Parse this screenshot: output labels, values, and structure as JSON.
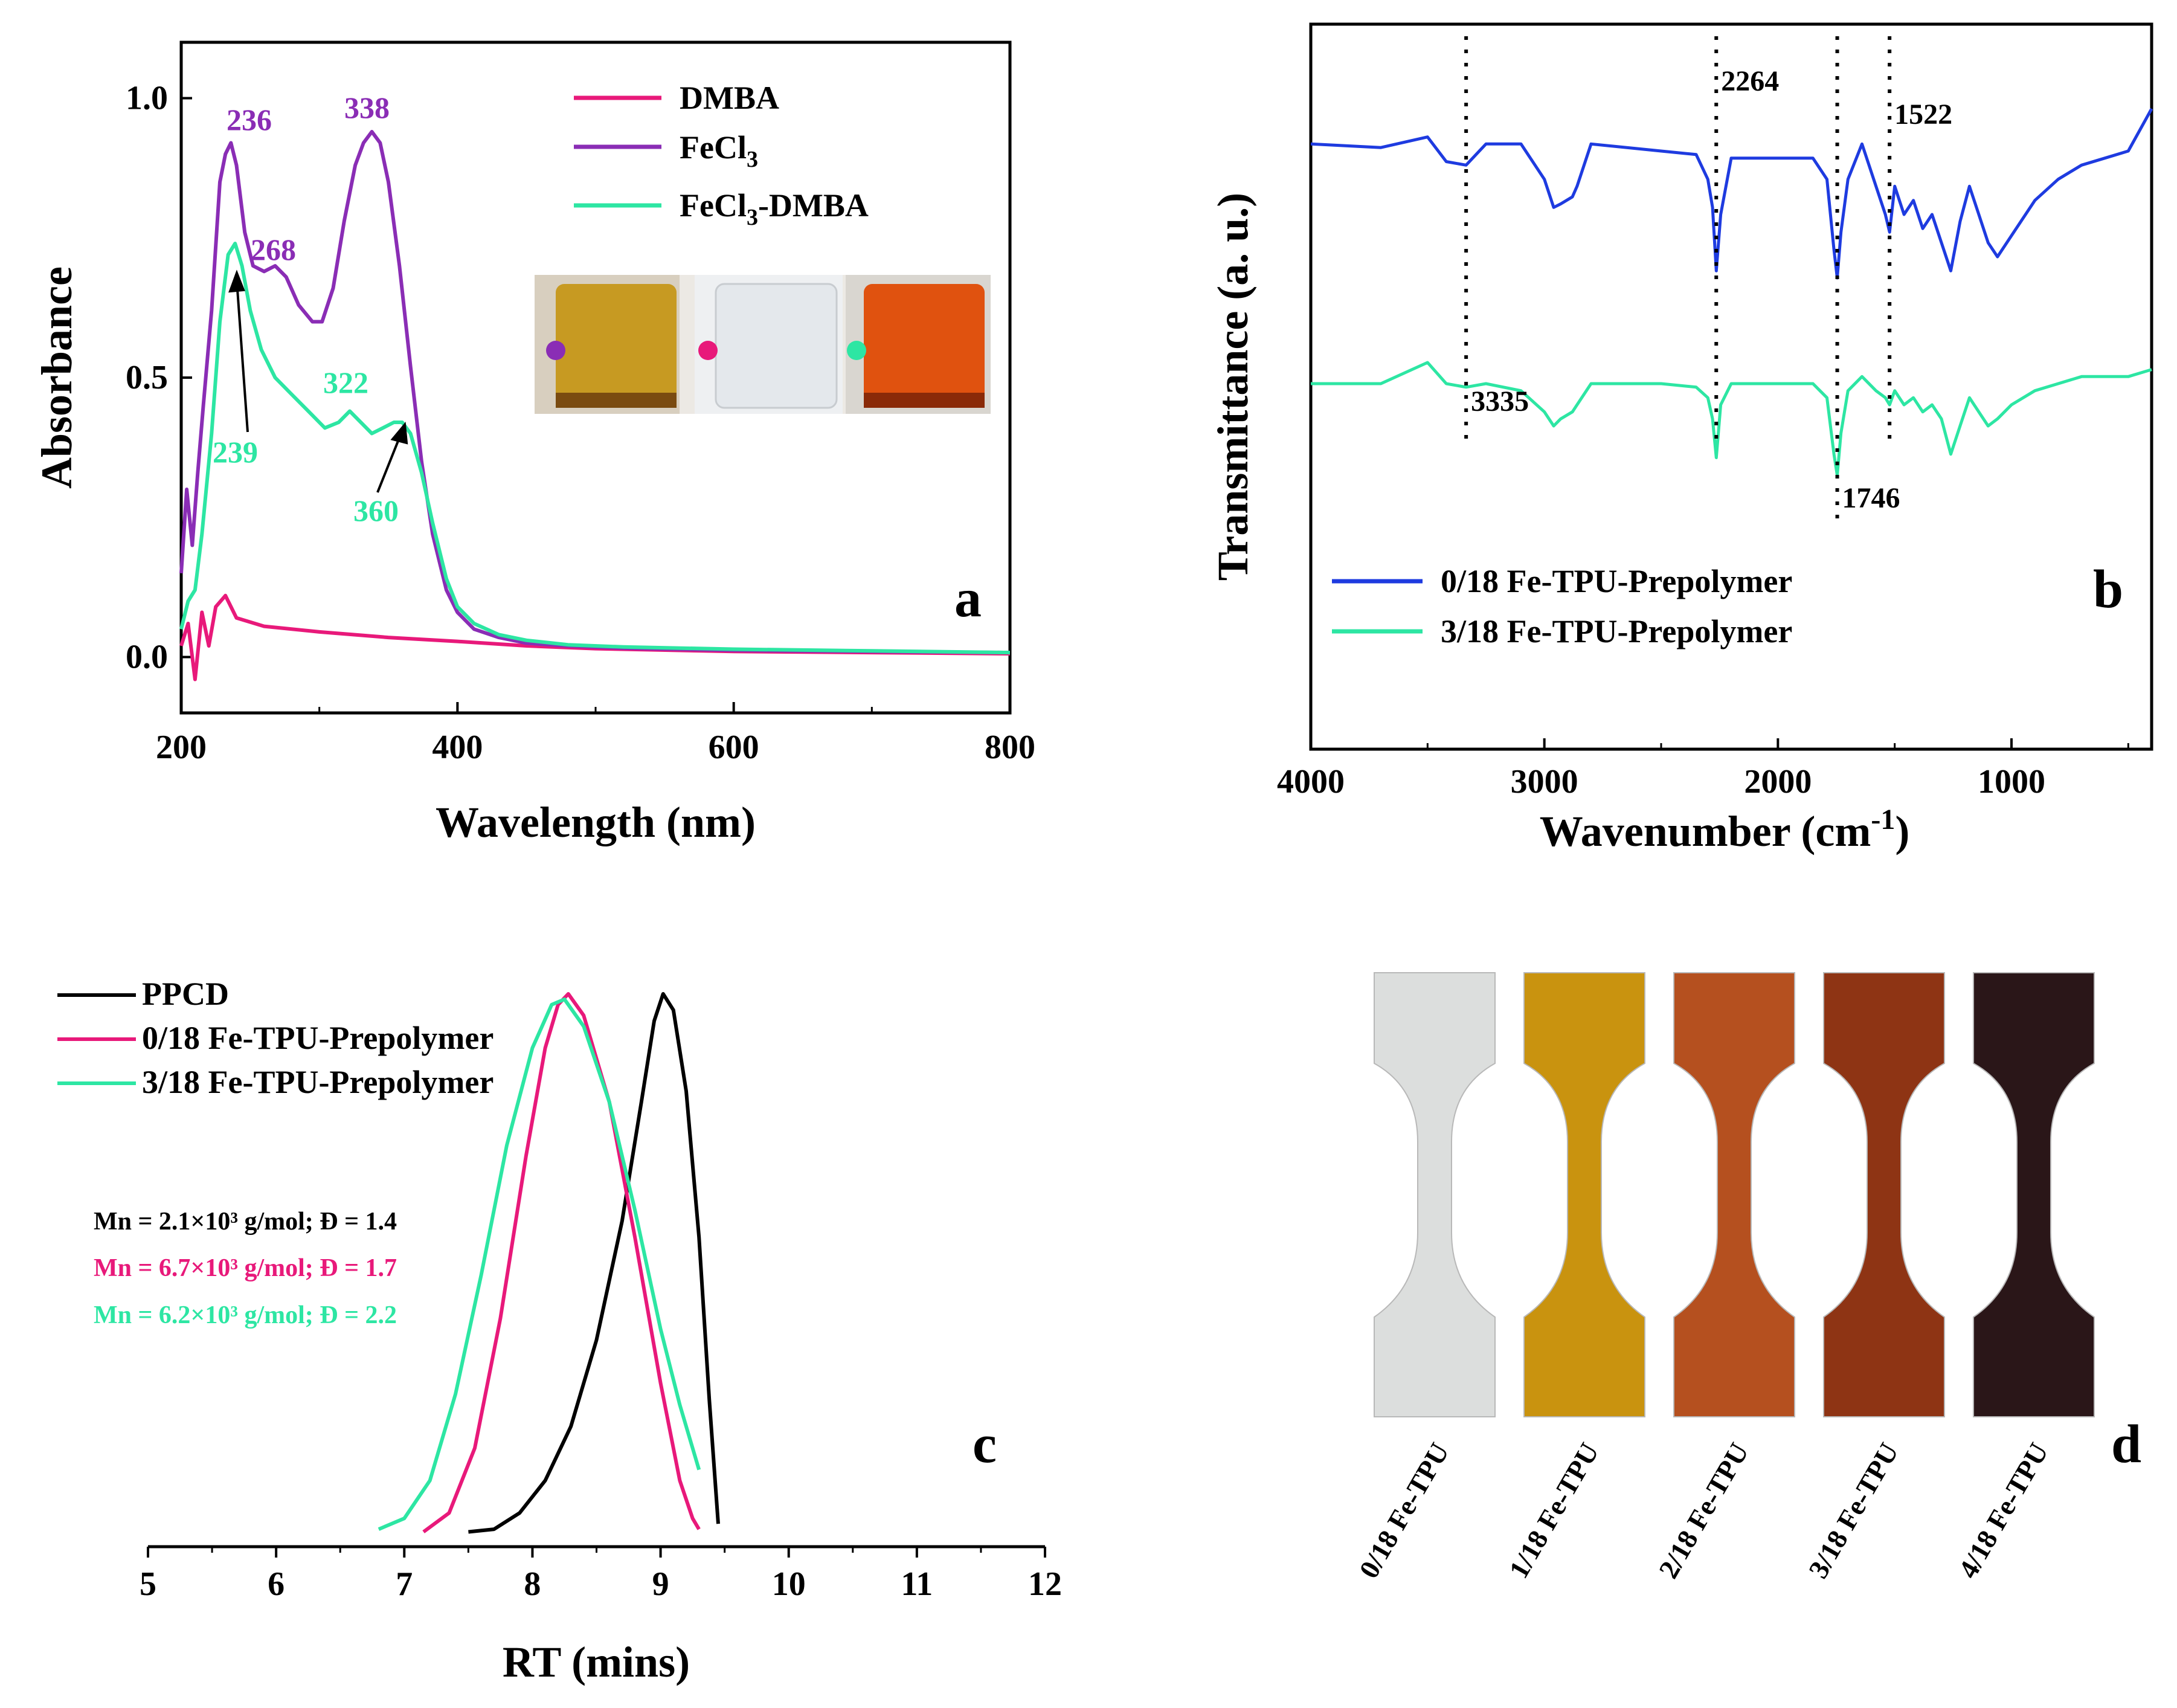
{
  "colors": {
    "dmba": "#e8197a",
    "fecl3": "#8a2db5",
    "fecl3dmba": "#2de6a3",
    "blue": "#1e3be0",
    "black": "#000000"
  },
  "chart_data": [
    {
      "panel": "a",
      "type": "line",
      "xlabel": "Wavelength (nm)",
      "ylabel": "Absorbance",
      "xlim": [
        200,
        800
      ],
      "ylim": [
        -0.1,
        1.1
      ],
      "xticks": [
        "200",
        "400",
        "600",
        "800"
      ],
      "yticks": [
        "0.0",
        "0.5",
        "1.0"
      ],
      "legend_placement": "top-right",
      "series": [
        {
          "name": "DMBA",
          "color_key": "dmba",
          "x": [
            200,
            205,
            210,
            215,
            220,
            225,
            232,
            240,
            260,
            300,
            350,
            400,
            450,
            500,
            600,
            700,
            800
          ],
          "y": [
            0.02,
            0.06,
            -0.04,
            0.08,
            0.02,
            0.09,
            0.11,
            0.07,
            0.055,
            0.045,
            0.035,
            0.028,
            0.02,
            0.015,
            0.01,
            0.008,
            0.006
          ]
        },
        {
          "name": "FeCl3",
          "color_key": "fecl3",
          "x": [
            200,
            204,
            208,
            212,
            216,
            222,
            228,
            232,
            236,
            240,
            246,
            252,
            260,
            268,
            276,
            285,
            295,
            302,
            310,
            318,
            326,
            332,
            338,
            344,
            350,
            358,
            366,
            374,
            382,
            392,
            400,
            412,
            430,
            450,
            480,
            520,
            600,
            700,
            800
          ],
          "y": [
            0.15,
            0.3,
            0.2,
            0.33,
            0.45,
            0.62,
            0.85,
            0.9,
            0.92,
            0.88,
            0.76,
            0.7,
            0.69,
            0.7,
            0.68,
            0.63,
            0.6,
            0.6,
            0.66,
            0.78,
            0.88,
            0.92,
            0.94,
            0.92,
            0.85,
            0.7,
            0.52,
            0.35,
            0.22,
            0.12,
            0.08,
            0.05,
            0.035,
            0.025,
            0.02,
            0.016,
            0.012,
            0.01,
            0.008
          ]
        },
        {
          "name": "FeCl3-DMBA",
          "color_key": "fecl3dmba",
          "x": [
            200,
            205,
            210,
            215,
            222,
            228,
            234,
            239,
            244,
            250,
            258,
            268,
            280,
            292,
            304,
            314,
            322,
            330,
            338,
            346,
            354,
            360,
            366,
            374,
            382,
            392,
            400,
            412,
            430,
            450,
            480,
            520,
            600,
            700,
            800
          ],
          "y": [
            0.05,
            0.1,
            0.12,
            0.22,
            0.4,
            0.6,
            0.72,
            0.74,
            0.7,
            0.62,
            0.55,
            0.5,
            0.47,
            0.44,
            0.41,
            0.42,
            0.44,
            0.42,
            0.4,
            0.41,
            0.42,
            0.42,
            0.4,
            0.33,
            0.24,
            0.14,
            0.09,
            0.06,
            0.04,
            0.03,
            0.022,
            0.018,
            0.014,
            0.011,
            0.008
          ]
        }
      ],
      "annotations": [
        {
          "text": "236",
          "color_key": "fecl3"
        },
        {
          "text": "338",
          "color_key": "fecl3"
        },
        {
          "text": "268",
          "color_key": "fecl3"
        },
        {
          "text": "322",
          "color_key": "fecl3dmba"
        },
        {
          "text": "239",
          "color_key": "fecl3dmba"
        },
        {
          "text": "360",
          "color_key": "fecl3dmba"
        }
      ],
      "inset": "photo of three vials: yellow (FeCl3), clear (DMBA), orange (FeCl3-DMBA)"
    },
    {
      "panel": "b",
      "type": "line",
      "xlabel": "Wavenumber (cm-1)",
      "ylabel": "Transmittance (a. u.)",
      "xlim": [
        4000,
        400
      ],
      "xticks": [
        "4000",
        "3000",
        "2000",
        "1000"
      ],
      "legend_placement": "bottom-left",
      "peak_labels": [
        "3335",
        "2264",
        "1746",
        "1522"
      ],
      "series": [
        {
          "name": "0/18 Fe-TPU-Prepolymer",
          "color_key": "blue",
          "x": [
            4000,
            3700,
            3500,
            3420,
            3335,
            3250,
            3100,
            3000,
            2960,
            2930,
            2880,
            2860,
            2800,
            2500,
            2350,
            2300,
            2280,
            2264,
            2245,
            2200,
            2000,
            1850,
            1790,
            1760,
            1746,
            1730,
            1700,
            1640,
            1580,
            1540,
            1522,
            1500,
            1460,
            1420,
            1380,
            1340,
            1300,
            1260,
            1220,
            1180,
            1140,
            1100,
            1060,
            1000,
            900,
            800,
            700,
            600,
            500,
            400
          ],
          "y": [
            0.1,
            0.11,
            0.08,
            0.15,
            0.16,
            0.1,
            0.1,
            0.2,
            0.28,
            0.27,
            0.25,
            0.22,
            0.1,
            0.12,
            0.13,
            0.2,
            0.28,
            0.46,
            0.3,
            0.14,
            0.14,
            0.14,
            0.2,
            0.4,
            0.48,
            0.35,
            0.2,
            0.1,
            0.22,
            0.3,
            0.35,
            0.22,
            0.3,
            0.26,
            0.34,
            0.3,
            0.38,
            0.46,
            0.32,
            0.22,
            0.3,
            0.38,
            0.42,
            0.36,
            0.26,
            0.2,
            0.16,
            0.14,
            0.12,
            0.0
          ]
        },
        {
          "name": "3/18 Fe-TPU-Prepolymer",
          "color_key": "fecl3dmba",
          "x": [
            4000,
            3700,
            3500,
            3420,
            3335,
            3250,
            3100,
            3000,
            2960,
            2930,
            2880,
            2860,
            2800,
            2500,
            2350,
            2300,
            2280,
            2264,
            2245,
            2200,
            2000,
            1850,
            1790,
            1760,
            1746,
            1730,
            1700,
            1640,
            1580,
            1540,
            1522,
            1500,
            1460,
            1420,
            1380,
            1340,
            1300,
            1260,
            1220,
            1180,
            1140,
            1100,
            1060,
            1000,
            900,
            800,
            700,
            600,
            500,
            400
          ],
          "y": [
            0.78,
            0.78,
            0.72,
            0.78,
            0.79,
            0.78,
            0.8,
            0.86,
            0.9,
            0.88,
            0.86,
            0.84,
            0.78,
            0.78,
            0.79,
            0.82,
            0.88,
            0.99,
            0.84,
            0.78,
            0.78,
            0.78,
            0.82,
            0.98,
            1.04,
            0.92,
            0.8,
            0.76,
            0.8,
            0.82,
            0.84,
            0.8,
            0.84,
            0.82,
            0.86,
            0.84,
            0.88,
            0.98,
            0.9,
            0.82,
            0.86,
            0.9,
            0.88,
            0.84,
            0.8,
            0.78,
            0.76,
            0.76,
            0.76,
            0.74
          ]
        }
      ]
    },
    {
      "panel": "c",
      "type": "line",
      "xlabel": "RT (mins)",
      "xlim": [
        5,
        12
      ],
      "xticks": [
        "5",
        "6",
        "7",
        "8",
        "9",
        "10",
        "11",
        "12"
      ],
      "legend_placement": "top-left",
      "series": [
        {
          "name": "PPCD",
          "color_key": "black",
          "x": [
            7.5,
            7.7,
            7.9,
            8.1,
            8.3,
            8.5,
            8.7,
            8.85,
            8.95,
            9.02,
            9.1,
            9.2,
            9.3,
            9.38,
            9.45
          ],
          "y": [
            0.005,
            0.01,
            0.04,
            0.1,
            0.2,
            0.36,
            0.58,
            0.8,
            0.95,
            1.0,
            0.97,
            0.82,
            0.55,
            0.25,
            0.02
          ]
        },
        {
          "name": "0/18 Fe-TPU-Prepolymer",
          "color_key": "dmba",
          "x": [
            7.15,
            7.35,
            7.55,
            7.75,
            7.95,
            8.1,
            8.2,
            8.28,
            8.4,
            8.6,
            8.8,
            9.0,
            9.15,
            9.25,
            9.3
          ],
          "y": [
            0.005,
            0.04,
            0.16,
            0.4,
            0.7,
            0.9,
            0.98,
            1.0,
            0.96,
            0.8,
            0.55,
            0.28,
            0.1,
            0.03,
            0.01
          ]
        },
        {
          "name": "3/18 Fe-TPU-Prepolymer",
          "color_key": "fecl3dmba",
          "x": [
            6.8,
            7.0,
            7.2,
            7.4,
            7.6,
            7.8,
            8.0,
            8.15,
            8.25,
            8.4,
            8.6,
            8.8,
            9.0,
            9.15,
            9.3
          ],
          "y": [
            0.01,
            0.03,
            0.1,
            0.26,
            0.48,
            0.72,
            0.9,
            0.98,
            0.99,
            0.94,
            0.8,
            0.6,
            0.38,
            0.24,
            0.12
          ]
        }
      ],
      "notes": [
        {
          "text": "Mn = 2.1×10³ g/mol; Đ = 1.4",
          "color_key": "black"
        },
        {
          "text": "Mn = 6.7×10³ g/mol; Đ = 1.7",
          "color_key": "dmba"
        },
        {
          "text": "Mn = 6.2×10³  g/mol; Đ = 2.2",
          "color_key": "fecl3dmba"
        }
      ]
    }
  ],
  "panel_d": {
    "samples": [
      {
        "label": "0/18 Fe-TPU",
        "color": "#dcdedd"
      },
      {
        "label": "1/18 Fe-TPU",
        "color": "#c9930f"
      },
      {
        "label": "2/18 Fe-TPU",
        "color": "#b5501f"
      },
      {
        "label": "3/18 Fe-TPU",
        "color": "#8e3414"
      },
      {
        "label": "4/18 Fe-TPU",
        "color": "#2a1618"
      }
    ]
  },
  "panel_labels": [
    "a",
    "b",
    "c",
    "d"
  ],
  "text": {
    "a_leg1": "DMBA",
    "a_leg2": "FeCl",
    "a_leg3": "FeCl",
    "a_leg3b": "-DMBA",
    "sub3": "3",
    "b_xlabel": "Wavenumber (cm",
    "b_xsup": "-1",
    "b_xclose": ")",
    "c_notes_prefix": "M",
    "c_notes_sub": "n"
  }
}
